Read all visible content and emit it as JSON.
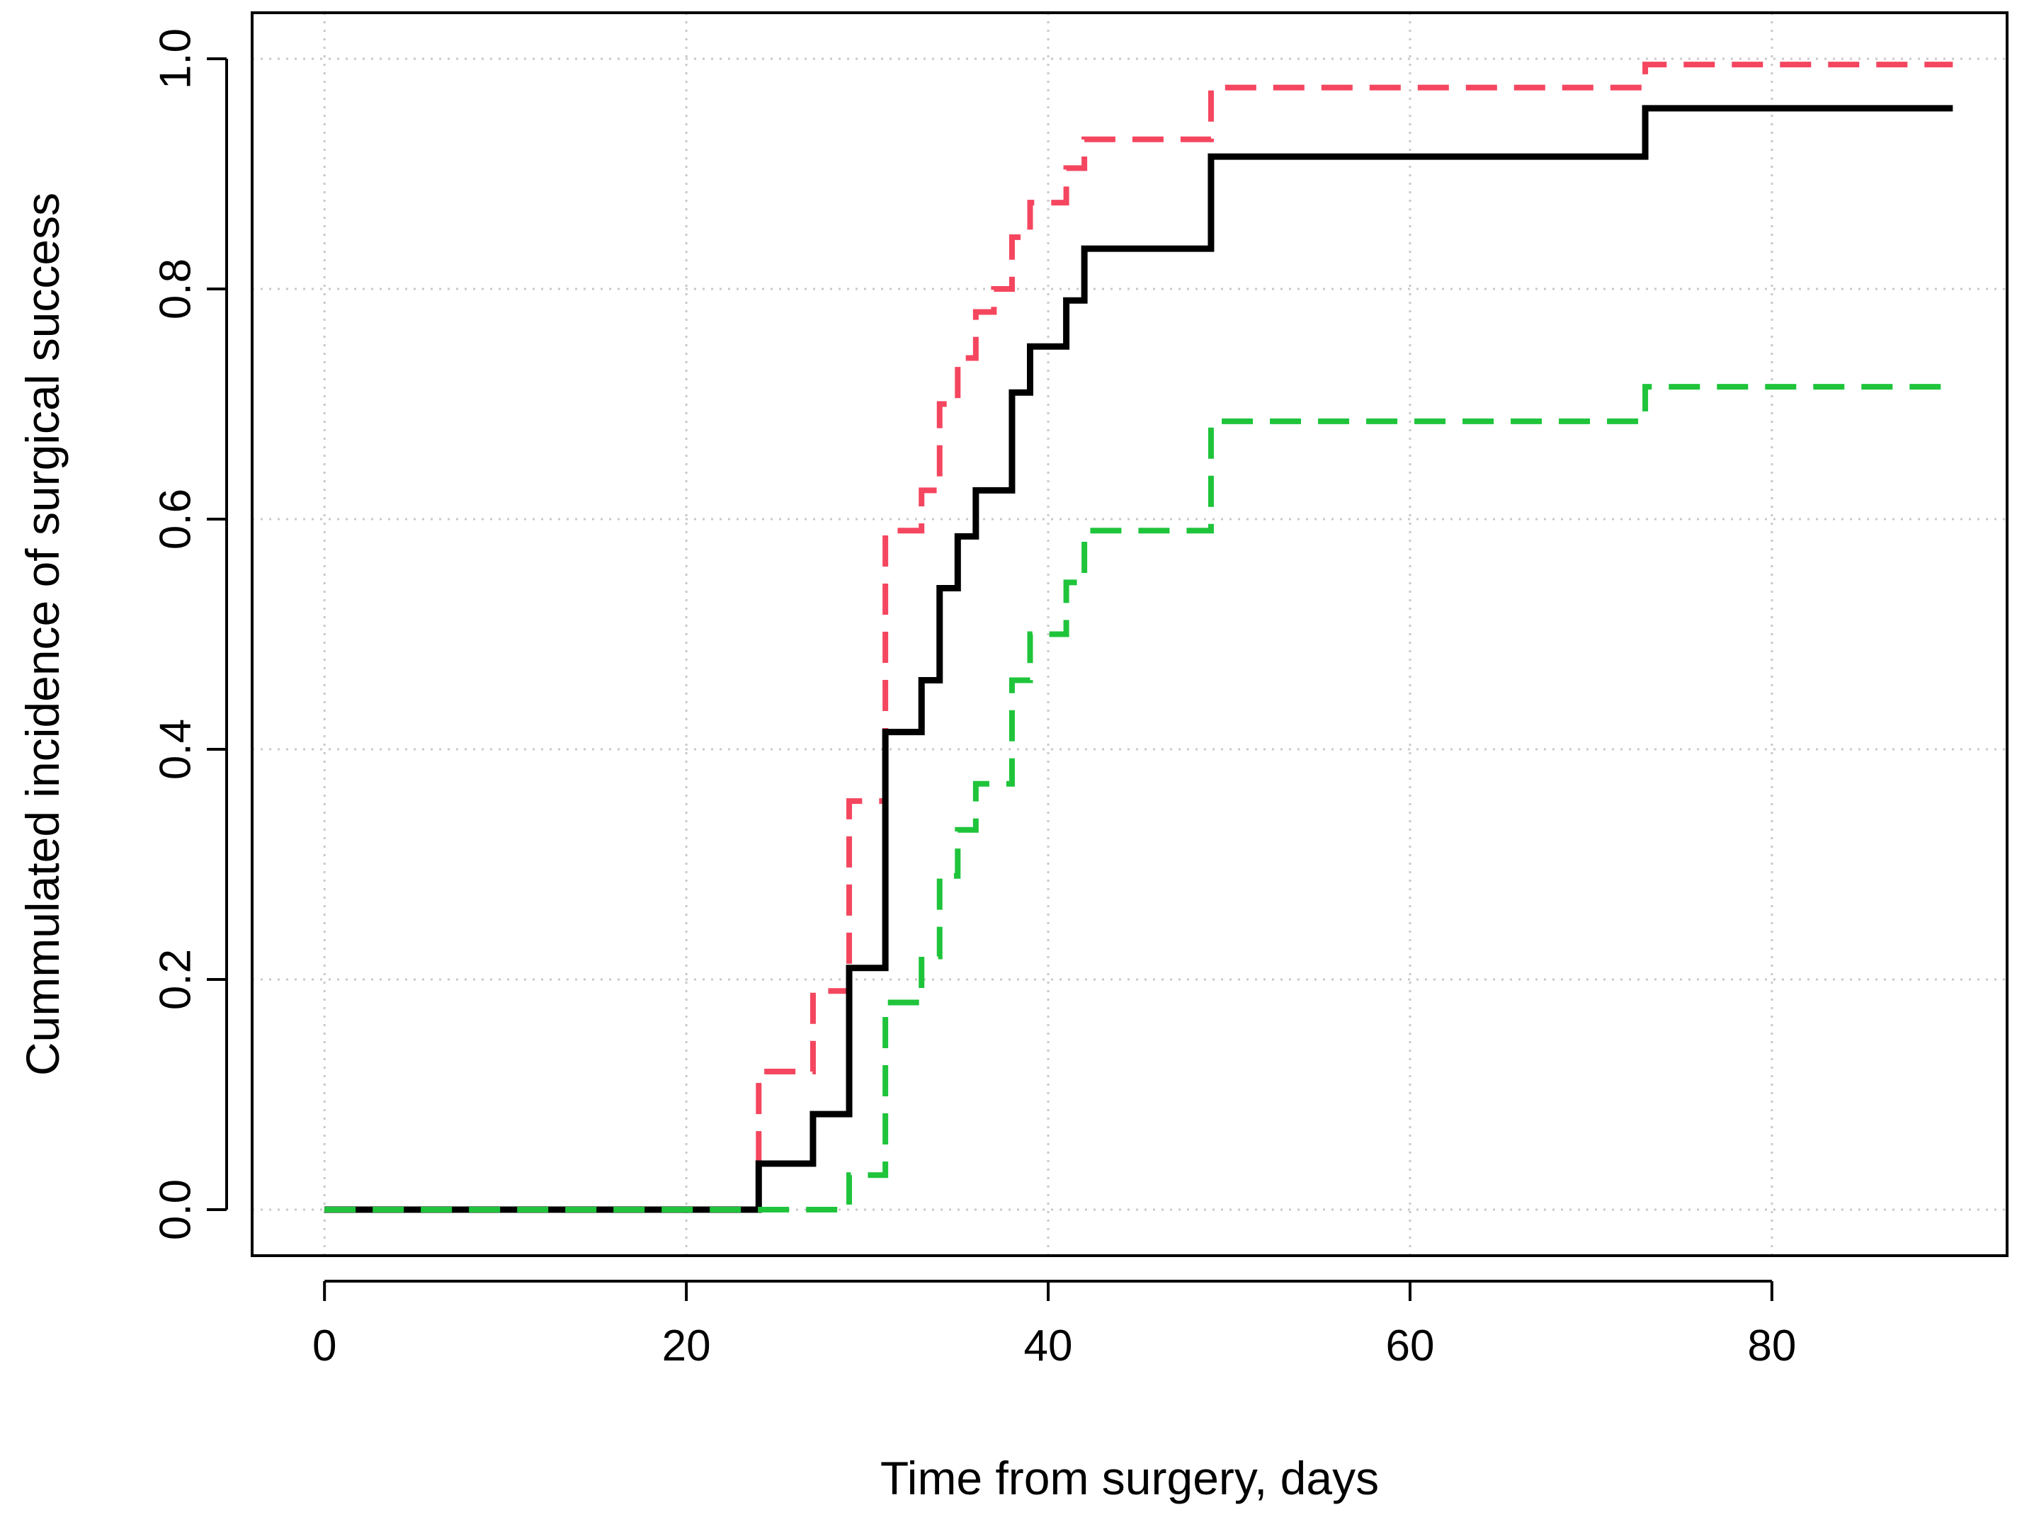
{
  "chart_data": {
    "type": "line",
    "title": "",
    "xlabel": "Time from surgery, days",
    "ylabel": "Cummulated incidence of surgical success",
    "xlim": [
      -4,
      93
    ],
    "ylim": [
      -0.04,
      1.04
    ],
    "x_ticks": [
      0,
      20,
      40,
      60,
      80
    ],
    "y_ticks": [
      0.0,
      0.2,
      0.4,
      0.6,
      0.8,
      1.0
    ],
    "x_tick_labels": [
      "0",
      "20",
      "40",
      "60",
      "80"
    ],
    "y_tick_labels": [
      "0.0",
      "0.2",
      "0.4",
      "0.6",
      "0.8",
      "1.0"
    ],
    "grid": true,
    "legend": "none",
    "step": true,
    "series": [
      {
        "color": "#F5465F",
        "line_style": "dashed",
        "x": [
          0,
          24,
          27,
          29,
          31,
          33,
          34,
          35,
          36,
          37,
          38,
          39,
          41,
          42,
          49,
          73,
          90
        ],
        "y": [
          0,
          0.12,
          0.19,
          0.355,
          0.59,
          0.625,
          0.7,
          0.74,
          0.78,
          0.8,
          0.845,
          0.875,
          0.905,
          0.93,
          0.975,
          0.995,
          0.995
        ]
      },
      {
        "color": "#000000",
        "line_style": "solid",
        "x": [
          0,
          24,
          27,
          29,
          31,
          33,
          34,
          35,
          36,
          38,
          39,
          40,
          41,
          42,
          49,
          73,
          90
        ],
        "y": [
          0,
          0.04,
          0.083,
          0.21,
          0.415,
          0.46,
          0.54,
          0.585,
          0.625,
          0.71,
          0.75,
          0.75,
          0.79,
          0.835,
          0.915,
          0.957,
          0.957
        ]
      },
      {
        "color": "#1FC43B",
        "line_style": "dashed",
        "x": [
          0,
          29,
          30,
          31,
          33,
          34,
          35,
          36,
          38,
          39,
          41,
          42,
          49,
          73,
          90
        ],
        "y": [
          0,
          0.03,
          0.03,
          0.18,
          0.22,
          0.29,
          0.33,
          0.37,
          0.46,
          0.5,
          0.545,
          0.59,
          0.685,
          0.715,
          0.715
        ]
      }
    ]
  }
}
